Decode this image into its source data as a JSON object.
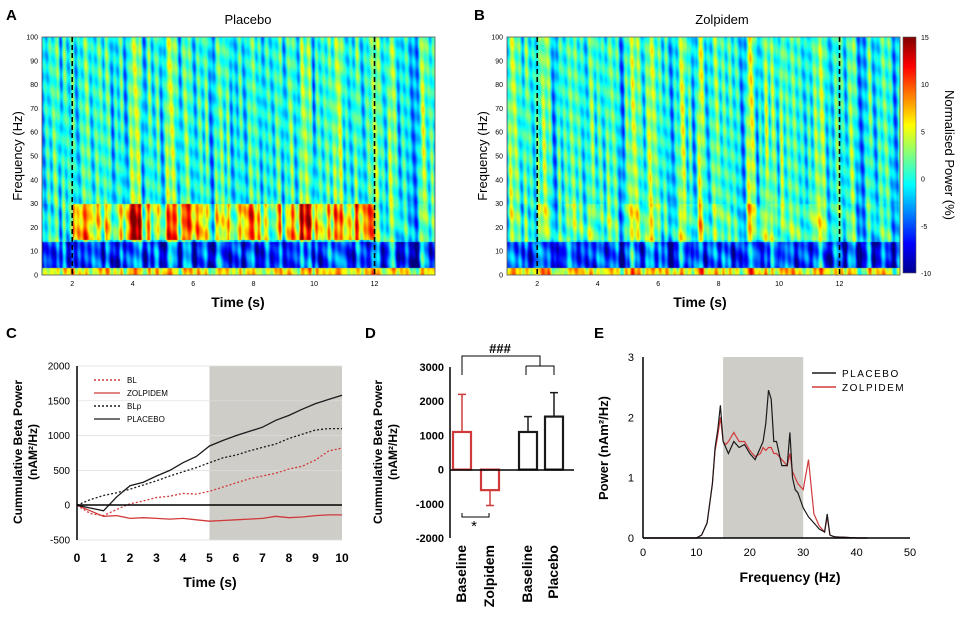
{
  "colors": {
    "placebo": "#1a1a1a",
    "zolpidem": "#d03a3a",
    "shade": "#cfcdc8",
    "baseline_red": "#d94b4b"
  },
  "panels": {
    "A": {
      "letter": "A",
      "title": "Placebo",
      "xlabel": "Time (s)",
      "ylabel": "Frequency (Hz)",
      "xticks": [
        "2",
        "4",
        "6",
        "8",
        "10",
        "12"
      ],
      "yticks": [
        "0",
        "10",
        "20",
        "30",
        "40",
        "50",
        "60",
        "70",
        "80",
        "90",
        "100"
      ],
      "markers_s": [
        2,
        12
      ],
      "xlim": [
        1,
        14
      ],
      "ylim": [
        0,
        100
      ],
      "beta_band_hz": [
        15,
        30
      ],
      "beta_intensity": 0.55,
      "seed": 11
    },
    "B": {
      "letter": "B",
      "title": "Zolpidem",
      "xlabel": "Time (s)",
      "ylabel": "Frequency (Hz)",
      "xticks": [
        "2",
        "4",
        "6",
        "8",
        "10",
        "12"
      ],
      "yticks": [
        "0",
        "10",
        "20",
        "30",
        "40",
        "50",
        "60",
        "70",
        "80",
        "90",
        "100"
      ],
      "markers_s": [
        2,
        12
      ],
      "xlim": [
        1,
        14
      ],
      "ylim": [
        0,
        100
      ],
      "beta_band_hz": [
        15,
        30
      ],
      "beta_intensity": 0.1,
      "seed": 29
    },
    "colorbar": {
      "label": "Normalised Power (%)",
      "ticks": [
        "15",
        "10",
        "5",
        "0",
        "-5",
        "-10"
      ],
      "range": [
        -10,
        15
      ]
    }
  },
  "chart_data": [
    {
      "panel": "C",
      "type": "line",
      "letter": "C",
      "xlabel": "Time (s)",
      "ylabel_1": "Cummulative Beta Power",
      "ylabel_2": "(nAM²/Hz)",
      "xlim": [
        0,
        10
      ],
      "ylim": [
        -500,
        2000
      ],
      "shaded_x": [
        5,
        10
      ],
      "xticks": [
        "0",
        "1",
        "2",
        "3",
        "4",
        "5",
        "6",
        "7",
        "8",
        "9",
        "10"
      ],
      "yticks": [
        "-500",
        "0",
        "500",
        "1000",
        "1500",
        "2000"
      ],
      "legend": [
        "BL",
        "ZOLPIDEM",
        "BLp",
        "PLACEBO"
      ],
      "series": [
        {
          "name": "BL",
          "style": "dotted",
          "color": "#d03a3a",
          "x": [
            0,
            0.5,
            1,
            1.5,
            2,
            2.5,
            3,
            3.5,
            4,
            4.5,
            5,
            5.5,
            6,
            6.5,
            7,
            7.5,
            8,
            8.5,
            9,
            9.5,
            10
          ],
          "y": [
            0,
            -120,
            -150,
            -60,
            20,
            60,
            110,
            130,
            170,
            160,
            200,
            260,
            320,
            380,
            420,
            460,
            520,
            560,
            650,
            780,
            820
          ]
        },
        {
          "name": "ZOLPIDEM",
          "style": "solid",
          "color": "#d03a3a",
          "x": [
            0,
            0.5,
            1,
            1.5,
            2,
            2.5,
            3,
            3.5,
            4,
            4.5,
            5,
            5.5,
            6,
            6.5,
            7,
            7.5,
            8,
            8.5,
            9,
            9.5,
            10
          ],
          "y": [
            0,
            -80,
            -160,
            -150,
            -190,
            -180,
            -190,
            -200,
            -190,
            -210,
            -230,
            -220,
            -210,
            -200,
            -190,
            -160,
            -180,
            -170,
            -150,
            -140,
            -140
          ]
        },
        {
          "name": "BLp",
          "style": "dotted",
          "color": "#1a1a1a",
          "x": [
            0,
            0.5,
            1,
            1.5,
            2,
            2.5,
            3,
            3.5,
            4,
            4.5,
            5,
            5.5,
            6,
            6.5,
            7,
            7.5,
            8,
            8.5,
            9,
            9.5,
            10
          ],
          "y": [
            0,
            80,
            140,
            180,
            230,
            290,
            350,
            420,
            480,
            540,
            610,
            680,
            720,
            780,
            830,
            880,
            960,
            1020,
            1080,
            1100,
            1100
          ]
        },
        {
          "name": "PLACEBO",
          "style": "solid",
          "color": "#1a1a1a",
          "x": [
            0,
            0.5,
            1,
            1.5,
            2,
            2.5,
            3,
            3.5,
            4,
            4.5,
            5,
            5.5,
            6,
            6.5,
            7,
            7.5,
            8,
            8.5,
            9,
            9.5,
            10
          ],
          "y": [
            0,
            -40,
            -80,
            120,
            280,
            330,
            420,
            500,
            610,
            700,
            850,
            930,
            1000,
            1060,
            1120,
            1220,
            1290,
            1380,
            1460,
            1520,
            1580
          ]
        }
      ]
    },
    {
      "panel": "D",
      "type": "bar",
      "letter": "D",
      "ylabel_1": "Cummulative Beta Power",
      "ylabel_2": "(nAM²/Hz)",
      "ylim": [
        -2000,
        3000
      ],
      "yticks": [
        "-2000",
        "-1000",
        "0",
        "1000",
        "2000",
        "3000"
      ],
      "categories": [
        "Baseline",
        "Zolpidem",
        "Baseline",
        "Placebo"
      ],
      "values": [
        1100,
        -600,
        1100,
        1550
      ],
      "errors": [
        1100,
        450,
        450,
        700
      ],
      "bar_colors": [
        "#d03a3a",
        "#d03a3a",
        "#1a1a1a",
        "#1a1a1a"
      ],
      "annotations": {
        "hash": "###",
        "star": "*"
      }
    },
    {
      "panel": "E",
      "type": "line",
      "letter": "E",
      "xlabel": "Frequency (Hz)",
      "ylabel": "Power (nAm²/Hz)",
      "xlim": [
        0,
        50
      ],
      "ylim": [
        0,
        3
      ],
      "shaded_x": [
        15,
        30
      ],
      "xticks": [
        "0",
        "10",
        "20",
        "30",
        "40",
        "50"
      ],
      "yticks": [
        "0",
        "1",
        "2",
        "3"
      ],
      "legend": [
        "PLACEBO",
        "ZOLPIDEM"
      ],
      "series": [
        {
          "name": "PLACEBO",
          "color": "#1a1a1a",
          "x": [
            0,
            10,
            11,
            12,
            13,
            13.5,
            14,
            14.5,
            15,
            15.5,
            16,
            17,
            18,
            19,
            20,
            21,
            22,
            22.5,
            23,
            23.5,
            24,
            24.5,
            25,
            26,
            27,
            27.5,
            28,
            28.5,
            29,
            30,
            31,
            32,
            33,
            34,
            34.5,
            35,
            35.5,
            36,
            38,
            40,
            42
          ],
          "y": [
            0,
            0,
            0.05,
            0.25,
            0.9,
            1.5,
            1.8,
            2.2,
            1.6,
            1.5,
            1.4,
            1.6,
            1.5,
            1.55,
            1.4,
            1.3,
            1.5,
            1.6,
            1.9,
            2.45,
            2.3,
            1.6,
            1.6,
            1.2,
            1.2,
            1.75,
            1.0,
            0.8,
            0.75,
            0.5,
            0.35,
            0.25,
            0.15,
            0.1,
            0.4,
            0.05,
            0.03,
            0.02,
            0.01,
            0,
            0
          ]
        },
        {
          "name": "ZOLPIDEM",
          "color": "#d03a3a",
          "x": [
            0,
            10,
            11,
            12,
            13,
            13.5,
            14,
            14.5,
            15,
            15.5,
            16,
            17,
            18,
            19,
            20,
            21,
            22,
            22.5,
            23,
            23.5,
            24,
            24.5,
            25,
            26,
            27,
            27.5,
            28,
            28.5,
            29,
            30,
            31,
            32,
            33,
            34,
            34.5,
            35,
            35.5,
            36,
            38,
            40,
            42
          ],
          "y": [
            0,
            0,
            0.05,
            0.25,
            0.9,
            1.45,
            1.7,
            2.0,
            1.6,
            1.55,
            1.6,
            1.75,
            1.6,
            1.6,
            1.45,
            1.35,
            1.4,
            1.5,
            1.45,
            1.5,
            1.5,
            1.4,
            1.4,
            1.3,
            1.2,
            1.4,
            1.1,
            1.0,
            0.9,
            0.8,
            1.3,
            0.4,
            0.2,
            0.1,
            0.35,
            0.05,
            0.03,
            0.02,
            0.01,
            0,
            0
          ]
        }
      ]
    }
  ]
}
